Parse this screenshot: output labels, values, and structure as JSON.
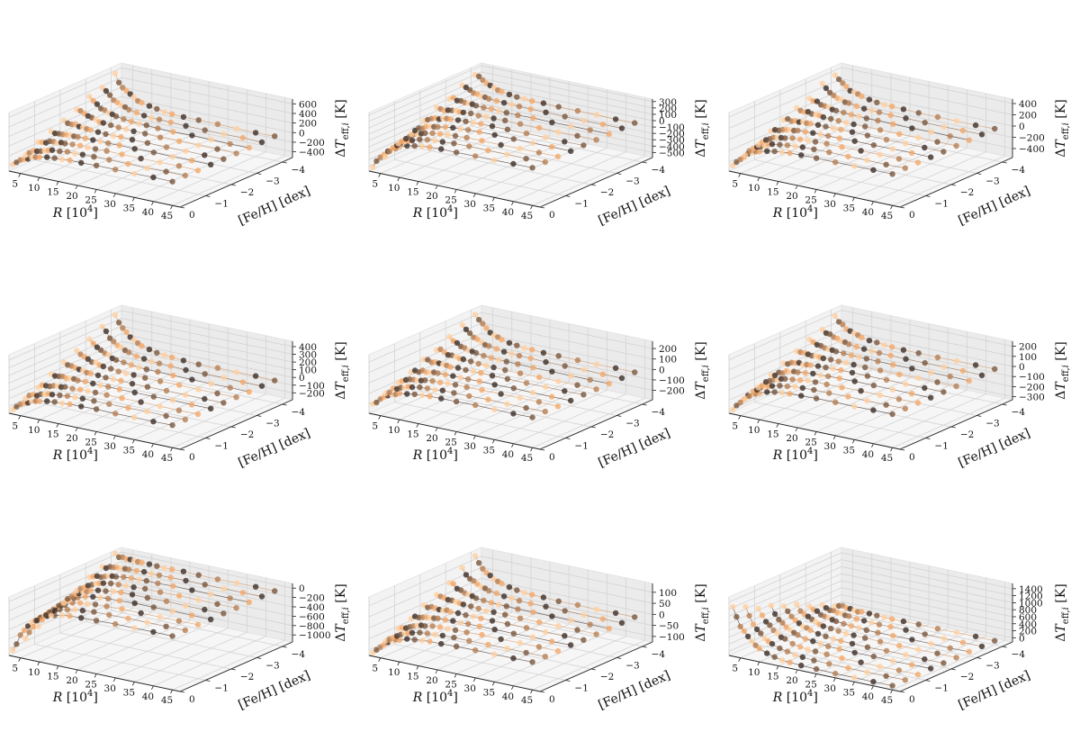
{
  "colors": {
    "dark": "#3a2a22",
    "light": "#f4a869",
    "pale": "#ffd0a0"
  },
  "chart_data": [
    {
      "type": "scatter",
      "xlabel": "$R$ [$10^4$]",
      "ylabel": "[Fe/H] [dex]",
      "zlabel": "$\\Delta T_{\\mathrm{eff},i}$ [K]",
      "x_ticks": [
        "5",
        "10",
        "15",
        "20",
        "25",
        "30",
        "35",
        "40",
        "45"
      ],
      "y_ticks": [
        "0",
        "−1",
        "−2",
        "−3",
        "−4"
      ],
      "z_ticks": [
        "600",
        "400",
        "200",
        "0",
        "−200",
        "−400"
      ],
      "zlim": [
        -520,
        700
      ],
      "profile": {
        "low_end": -380,
        "high_end": 560,
        "tail": -20
      },
      "grid": true
    },
    {
      "type": "scatter",
      "xlabel": "$R$ [$10^4$]",
      "ylabel": "[Fe/H] [dex]",
      "zlabel": "$\\Delta T_{\\mathrm{eff},i}$ [K]",
      "x_ticks": [
        "5",
        "10",
        "15",
        "20",
        "25",
        "30",
        "35",
        "40",
        "45"
      ],
      "y_ticks": [
        "0",
        "−1",
        "−2",
        "−3",
        "−4"
      ],
      "z_ticks": [
        "300",
        "200",
        "100",
        "0",
        "−100",
        "−200",
        "−300",
        "−400",
        "−500"
      ],
      "zlim": [
        -580,
        340
      ],
      "profile": {
        "low_end": -520,
        "high_end": 260,
        "tail": 10
      },
      "grid": true
    },
    {
      "type": "scatter",
      "xlabel": "$R$ [$10^4$]",
      "ylabel": "[Fe/H] [dex]",
      "zlabel": "$\\Delta T_{\\mathrm{eff},i}$ [K]",
      "x_ticks": [
        "5",
        "10",
        "15",
        "20",
        "25",
        "30",
        "35",
        "40",
        "45"
      ],
      "y_ticks": [
        "0",
        "−1",
        "−2",
        "−3",
        "−4"
      ],
      "z_ticks": [
        "400",
        "200",
        "0",
        "−200",
        "−400"
      ],
      "zlim": [
        -560,
        480
      ],
      "profile": {
        "low_end": -460,
        "high_end": 380,
        "tail": 0
      },
      "grid": true
    },
    {
      "type": "scatter",
      "xlabel": "$R$ [$10^4$]",
      "ylabel": "[Fe/H] [dex]",
      "zlabel": "$\\Delta T_{\\mathrm{eff},i}$ [K]",
      "x_ticks": [
        "5",
        "10",
        "15",
        "20",
        "25",
        "30",
        "35",
        "40",
        "45"
      ],
      "y_ticks": [
        "0",
        "−1",
        "−2",
        "−3",
        "−4"
      ],
      "z_ticks": [
        "400",
        "300",
        "200",
        "100",
        "0",
        "−100",
        "−200"
      ],
      "zlim": [
        -290,
        470
      ],
      "profile": {
        "low_end": -240,
        "high_end": 420,
        "tail": 0
      },
      "grid": true
    },
    {
      "type": "scatter",
      "xlabel": "$R$ [$10^4$]",
      "ylabel": "[Fe/H] [dex]",
      "zlabel": "$\\Delta T_{\\mathrm{eff},i}$ [K]",
      "x_ticks": [
        "5",
        "10",
        "15",
        "20",
        "25",
        "30",
        "35",
        "40",
        "45"
      ],
      "y_ticks": [
        "0",
        "−1",
        "−2",
        "−3",
        "−4"
      ],
      "z_ticks": [
        "200",
        "100",
        "0",
        "−100",
        "−200"
      ],
      "zlim": [
        -290,
        270
      ],
      "profile": {
        "low_end": -200,
        "high_end": 230,
        "tail": 0
      },
      "grid": true
    },
    {
      "type": "scatter",
      "xlabel": "$R$ [$10^4$]",
      "ylabel": "[Fe/H] [dex]",
      "zlabel": "$\\Delta T_{\\mathrm{eff},i}$ [K]",
      "x_ticks": [
        "5",
        "10",
        "15",
        "20",
        "25",
        "30",
        "35",
        "40",
        "45"
      ],
      "y_ticks": [
        "0",
        "−1",
        "−2",
        "−3",
        "−4"
      ],
      "z_ticks": [
        "200",
        "100",
        "0",
        "−100",
        "−200",
        "−300"
      ],
      "zlim": [
        -330,
        250
      ],
      "profile": {
        "low_end": -300,
        "high_end": 190,
        "tail": 0
      },
      "grid": true
    },
    {
      "type": "scatter",
      "xlabel": "$R$ [$10^4$]",
      "ylabel": "[Fe/H] [dex]",
      "zlabel": "$\\Delta T_{\\mathrm{eff},i}$ [K]",
      "x_ticks": [
        "5",
        "10",
        "15",
        "20",
        "25",
        "30",
        "35",
        "40",
        "45"
      ],
      "y_ticks": [
        "0",
        "−1",
        "−2",
        "−3",
        "−4"
      ],
      "z_ticks": [
        "0",
        "−200",
        "−400",
        "−600",
        "−800",
        "−1000"
      ],
      "zlim": [
        -1150,
        100
      ],
      "profile": {
        "low_end": -1050,
        "high_end": 60,
        "tail": 0
      },
      "grid": true
    },
    {
      "type": "scatter",
      "xlabel": "$R$ [$10^4$]",
      "ylabel": "[Fe/H] [dex]",
      "zlabel": "$\\Delta T_{\\mathrm{eff},i}$ [K]",
      "x_ticks": [
        "5",
        "10",
        "15",
        "20",
        "25",
        "30",
        "35",
        "40",
        "45"
      ],
      "y_ticks": [
        "0",
        "−1",
        "−2",
        "−3",
        "−4"
      ],
      "z_ticks": [
        "100",
        "50",
        "0",
        "−50",
        "−100"
      ],
      "zlim": [
        -125,
        140
      ],
      "profile": {
        "low_end": -115,
        "high_end": 120,
        "tail": 0
      },
      "grid": true
    },
    {
      "type": "scatter",
      "xlabel": "$R$ [$10^4$]",
      "ylabel": "[Fe/H] [dex]",
      "zlabel": "$\\Delta T_{\\mathrm{eff},i}$ [K]",
      "x_ticks": [
        "5",
        "10",
        "15",
        "20",
        "25",
        "30",
        "35",
        "40",
        "45"
      ],
      "y_ticks": [
        "0",
        "−1",
        "−2",
        "−3",
        "−4"
      ],
      "z_ticks": [
        "1400",
        "1200",
        "1000",
        "800",
        "600",
        "400",
        "200",
        "0"
      ],
      "zlim": [
        -120,
        1550
      ],
      "profile": {
        "low_end": 1250,
        "high_end": 80,
        "tail": 0
      },
      "grid": true
    }
  ]
}
